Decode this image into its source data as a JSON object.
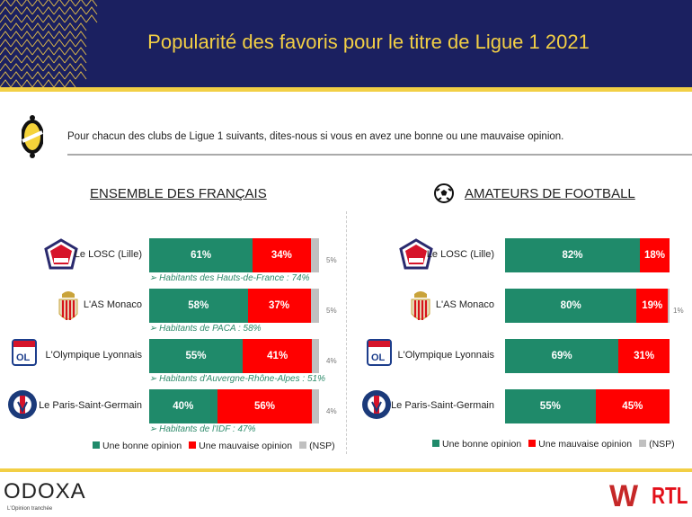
{
  "header": {
    "title": "Popularité des favoris pour le titre de Ligue 1 2021"
  },
  "question": "Pour chacun des clubs de Ligue 1 suivants, dites-nous si vous en avez une bonne ou une mauvaise opinion.",
  "colors": {
    "navy": "#1b2060",
    "gold": "#f2cf45",
    "good": "#1f8a6a",
    "bad": "#ff0000",
    "nsp": "#c0c0c0"
  },
  "chart_data": [
    {
      "type": "bar",
      "orientation": "horizontal-stacked",
      "title": "ENSEMBLE DES FRANÇAIS",
      "categories": [
        "Le LOSC (Lille)",
        "L'AS Monaco",
        "L'Olympique Lyonnais",
        "Le Paris-Saint-Germain"
      ],
      "logos": [
        "losc-logo",
        "monaco-logo",
        "ol-logo",
        "psg-logo"
      ],
      "series": [
        {
          "name": "Une bonne opinion",
          "values": [
            61,
            58,
            55,
            40
          ]
        },
        {
          "name": "Une mauvaise opinion",
          "values": [
            34,
            37,
            41,
            56
          ]
        },
        {
          "name": "(NSP)",
          "values": [
            5,
            5,
            4,
            4
          ]
        }
      ],
      "notes": [
        "Habitants des Hauts-de-France : 74%",
        "Habitants de PACA : 58%",
        "Habitants d'Auvergne-Rhône-Alpes : 51%",
        "Habitants de l'IDF : 47%"
      ],
      "legend": [
        "Une bonne opinion",
        "Une mauvaise opinion",
        "(NSP)"
      ]
    },
    {
      "type": "bar",
      "orientation": "horizontal-stacked",
      "title": "AMATEURS DE FOOTBALL",
      "categories": [
        "Le LOSC (Lille)",
        "L'AS Monaco",
        "L'Olympique Lyonnais",
        "Le Paris-Saint-Germain"
      ],
      "logos": [
        "losc-logo",
        "monaco-logo",
        "ol-logo",
        "psg-logo"
      ],
      "series": [
        {
          "name": "Une bonne opinion",
          "values": [
            82,
            80,
            69,
            55
          ]
        },
        {
          "name": "Une mauvaise opinion",
          "values": [
            18,
            19,
            31,
            45
          ]
        },
        {
          "name": "(NSP)",
          "values": [
            0,
            1,
            0,
            0
          ]
        }
      ],
      "notes": [],
      "legend": [
        "Une bonne opinion",
        "Une mauvaise opinion",
        "(NSP)"
      ]
    }
  ],
  "footer": {
    "brand": "ODOXA",
    "tagline": "L'Opinion tranchée",
    "partner1": "W",
    "partner2": "RTL"
  }
}
